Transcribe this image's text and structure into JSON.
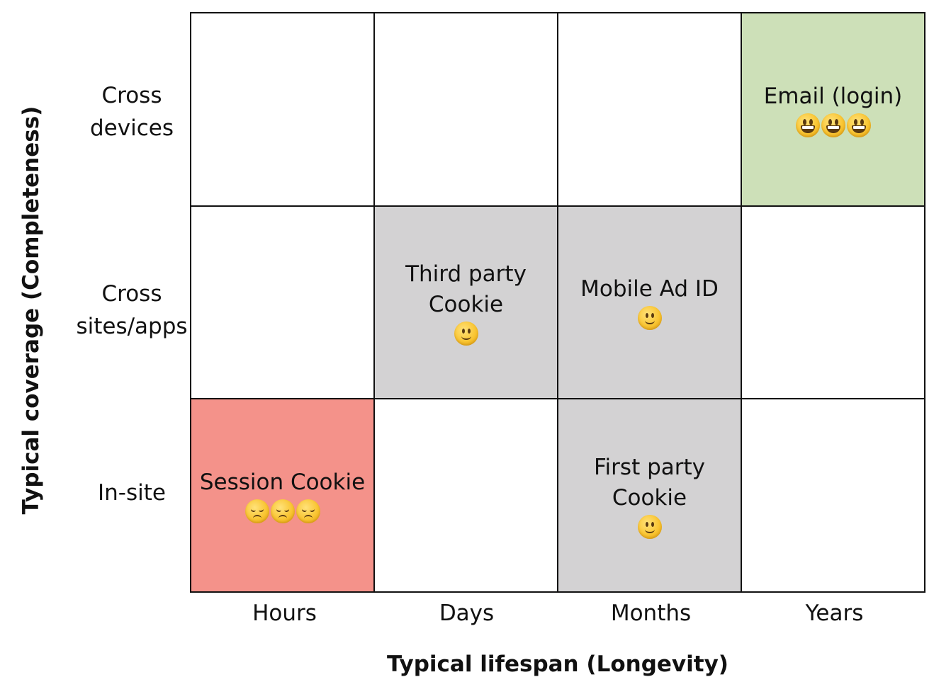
{
  "axes": {
    "y_title": "Typical coverage (Completeness)",
    "x_title": "Typical lifespan (Longevity)"
  },
  "rows": [
    "Cross\ndevices",
    "Cross\nsites/apps",
    "In-site"
  ],
  "columns": [
    "Hours",
    "Days",
    "Months",
    "Years"
  ],
  "colors": {
    "best": "#cde0b8",
    "neutral": "#d3d2d3",
    "worst": "#f4928a",
    "empty": "#ffffff"
  },
  "cells": [
    {
      "row": 0,
      "col": 0,
      "label": "",
      "color": "#ffffff",
      "emoji": "",
      "emoji_count": 0
    },
    {
      "row": 0,
      "col": 1,
      "label": "",
      "color": "#ffffff",
      "emoji": "",
      "emoji_count": 0
    },
    {
      "row": 0,
      "col": 2,
      "label": "",
      "color": "#ffffff",
      "emoji": "",
      "emoji_count": 0
    },
    {
      "row": 0,
      "col": 3,
      "label": "Email (login)",
      "color": "#cde0b8",
      "emoji": "grinning-face-icon",
      "emoji_count": 3
    },
    {
      "row": 1,
      "col": 0,
      "label": "",
      "color": "#ffffff",
      "emoji": "",
      "emoji_count": 0
    },
    {
      "row": 1,
      "col": 1,
      "label": "Third party\nCookie",
      "color": "#d3d2d3",
      "emoji": "slightly-smiling-face-icon",
      "emoji_count": 1
    },
    {
      "row": 1,
      "col": 2,
      "label": "Mobile Ad ID",
      "color": "#d3d2d3",
      "emoji": "slightly-smiling-face-icon",
      "emoji_count": 1
    },
    {
      "row": 1,
      "col": 3,
      "label": "",
      "color": "#ffffff",
      "emoji": "",
      "emoji_count": 0
    },
    {
      "row": 2,
      "col": 0,
      "label": "Session Cookie",
      "color": "#f4928a",
      "emoji": "disappointed-face-icon",
      "emoji_count": 3
    },
    {
      "row": 2,
      "col": 1,
      "label": "",
      "color": "#ffffff",
      "emoji": "",
      "emoji_count": 0
    },
    {
      "row": 2,
      "col": 2,
      "label": "First party\nCookie",
      "color": "#d3d2d3",
      "emoji": "slightly-smiling-face-icon",
      "emoji_count": 1
    },
    {
      "row": 2,
      "col": 3,
      "label": "",
      "color": "#ffffff",
      "emoji": "",
      "emoji_count": 0
    }
  ]
}
